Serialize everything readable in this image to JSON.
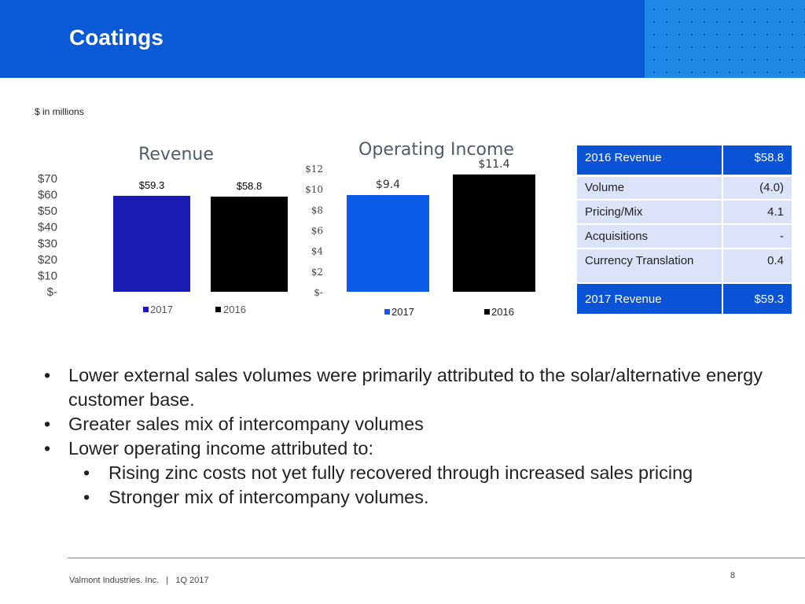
{
  "header": {
    "title": "Coatings"
  },
  "units_note": "$ in millions",
  "colors": {
    "header_bg": "#0a5ad8",
    "rev_2017": "#1a1ab4",
    "oi_2017": "#0b5ce8",
    "bar_2016": "#000000",
    "table_accent": "#0a52d6",
    "table_row": "#dbe3f8"
  },
  "chart_data": [
    {
      "type": "bar",
      "title": "Revenue",
      "categories": [
        "2017",
        "2016"
      ],
      "values": [
        59.3,
        58.8
      ],
      "data_labels": [
        "$59.3",
        "$58.8"
      ],
      "y_ticks": [
        "$-",
        "$10",
        "$20",
        "$30",
        "$40",
        "$50",
        "$60",
        "$70"
      ],
      "ylim": [
        0,
        70
      ],
      "legend": [
        "2017",
        "2016"
      ],
      "xlabel": "",
      "ylabel": ""
    },
    {
      "type": "bar",
      "title": "Operating Income",
      "categories": [
        "2017",
        "2016"
      ],
      "values": [
        9.4,
        11.4
      ],
      "data_labels": [
        "$9.4",
        "$11.4"
      ],
      "y_ticks": [
        "$-",
        "$2",
        "$4",
        "$6",
        "$8",
        "$10",
        "$12"
      ],
      "ylim": [
        0,
        12
      ],
      "legend": [
        "2017",
        "2016"
      ],
      "xlabel": "",
      "ylabel": ""
    }
  ],
  "bridge_table": {
    "start": {
      "label": "2016 Revenue",
      "value": "$58.8"
    },
    "rows": [
      {
        "label": "Volume",
        "value": "(4.0)"
      },
      {
        "label": "Pricing/Mix",
        "value": "4.1"
      },
      {
        "label": "Acquisitions",
        "value": "-"
      },
      {
        "label": "Currency Translation",
        "value": "0.4"
      }
    ],
    "end": {
      "label": "2017 Revenue",
      "value": "$59.3"
    }
  },
  "bullets": [
    "Lower external sales volumes were primarily attributed to the solar/alternative energy customer base.",
    "Greater sales mix of intercompany volumes",
    "Lower operating income attributed to:"
  ],
  "sub_bullets": [
    "Rising zinc costs not yet fully recovered through increased sales pricing",
    "Stronger mix of intercompany volumes."
  ],
  "footer": {
    "company": "Valmont Industries. Inc.",
    "separator": "|",
    "period": "1Q 2017",
    "page": "8"
  }
}
